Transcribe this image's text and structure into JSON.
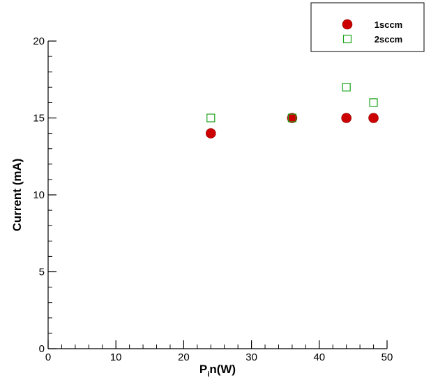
{
  "chart_data": {
    "type": "scatter",
    "xlabel": "P_in(W)",
    "ylabel": "Current (mA)",
    "xlim": [
      0,
      50
    ],
    "ylim": [
      0,
      20
    ],
    "x_ticks": [
      0,
      10,
      20,
      30,
      40,
      50
    ],
    "y_ticks": [
      0,
      5,
      10,
      15,
      20
    ],
    "x_minor_step": 2,
    "y_minor_step": 1,
    "grid": false,
    "legend_position": "top-right",
    "series": [
      {
        "name": "1sccm",
        "marker": "filled-circle",
        "color": "#cc0000",
        "points": [
          {
            "x": 24,
            "y": 14
          },
          {
            "x": 36,
            "y": 15
          },
          {
            "x": 44,
            "y": 15
          },
          {
            "x": 48,
            "y": 15
          }
        ]
      },
      {
        "name": "2sccm",
        "marker": "open-square",
        "color": "#1aa31a",
        "points": [
          {
            "x": 24,
            "y": 15
          },
          {
            "x": 36,
            "y": 15
          },
          {
            "x": 44,
            "y": 17
          },
          {
            "x": 48,
            "y": 16
          }
        ]
      }
    ]
  }
}
